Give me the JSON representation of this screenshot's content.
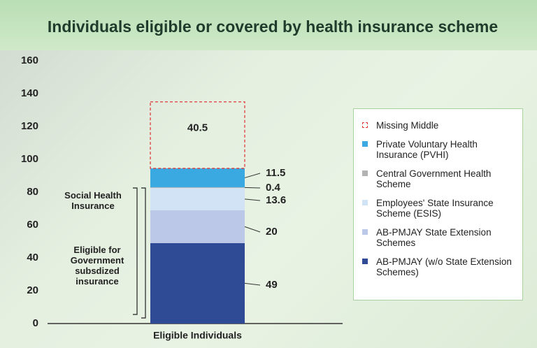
{
  "chart_data": {
    "type": "stacked_bar",
    "title": "Individuals eligible or covered by health insurance scheme",
    "categories": [
      "Eligible Individuals"
    ],
    "series": [
      {
        "name": "AB-PMJAY (w/o State Extension Schemes)",
        "color": "#2f4b96",
        "values": [
          49
        ]
      },
      {
        "name": "AB-PMJAY State Extension Schemes",
        "color": "#bcc8e8",
        "values": [
          20
        ]
      },
      {
        "name": "Employees' State Insurance Scheme (ESIS)",
        "color": "#d2e3f5",
        "values": [
          13.6
        ]
      },
      {
        "name": "Central Government Health Scheme",
        "color": "#b3b3b3",
        "values": [
          0.4
        ]
      },
      {
        "name": "Private Voluntary Health Insurance (PVHI)",
        "color": "#3aa9e1",
        "values": [
          11.5
        ]
      },
      {
        "name": "Missing Middle",
        "color": "#e03a3a",
        "dashed": true,
        "values": [
          40.5
        ]
      }
    ],
    "ylim": [
      0,
      160
    ],
    "yticks": [
      0,
      20,
      40,
      60,
      80,
      100,
      120,
      140,
      160
    ],
    "annotations": [
      "Social Health Insurance",
      "Eligible for Government subsdized insurance"
    ]
  }
}
